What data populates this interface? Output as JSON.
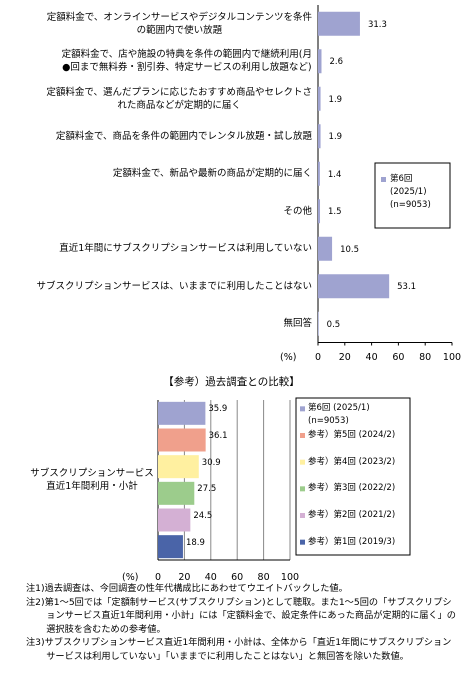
{
  "chart_data": [
    {
      "type": "bar",
      "orientation": "horizontal",
      "categories": [
        "定額料金で、オンラインサービスやデジタルコンテンツを条件\nの範囲内で使い放題",
        "定額料金で、店や施設の特典を条件の範囲内で継続利用(月\n●回まで無料券・割引券、特定サービスの利用し放題など)",
        "定額料金で、選んだプランに応じたおすすめ商品やセレクトさ\nれた商品などが定期的に届く",
        "定額料金で、商品を条件の範囲内でレンタル放題・試し放題",
        "定額料金で、新品や最新の商品が定期的に届く",
        "その他",
        "直近1年間にサブスクリプションサービスは利用していない",
        "サブスクリプションサービスは、いままでに利用したことはない",
        "無回答"
      ],
      "series": [
        {
          "name": "第6回\n(2025/1)\n(n=9053)",
          "color": "#9fa3d0",
          "values": [
            31.3,
            2.6,
            1.9,
            1.9,
            1.4,
            1.5,
            10.5,
            53.1,
            0.5
          ]
        }
      ],
      "x_label": "(%)",
      "xlim": [
        0,
        100
      ],
      "xticks": [
        0,
        20,
        40,
        60,
        80,
        100
      ],
      "grid": false
    },
    {
      "type": "bar",
      "orientation": "horizontal",
      "title": "【参考）過去調査との比較】",
      "categories": [
        "サブスクリプションサービス\n直近1年間利用・小計"
      ],
      "series": [
        {
          "name": "第6回 (2025/1)\n(n=9053)",
          "color": "#9fa3d0",
          "values": [
            35.9
          ]
        },
        {
          "name": "参考）第5回 (2024/2)",
          "color": "#f0a08c",
          "values": [
            36.1
          ]
        },
        {
          "name": "参考）第4回 (2023/2)",
          "color": "#fff0a0",
          "values": [
            30.9
          ]
        },
        {
          "name": "参考）第3回 (2022/2)",
          "color": "#9ccc8c",
          "values": [
            27.5
          ]
        },
        {
          "name": "参考）第2回 (2021/2)",
          "color": "#d4b0d4",
          "values": [
            24.5
          ]
        },
        {
          "name": "参考）第1回 (2019/3)",
          "color": "#4a64a8",
          "values": [
            18.9
          ]
        }
      ],
      "x_label": "(%)",
      "xlim": [
        0,
        100
      ],
      "xticks": [
        0,
        20,
        40,
        60,
        80,
        100
      ],
      "grid": true
    }
  ],
  "notes": [
    "注1)過去調査は、今回調査の性年代構成比にあわせてウエイトバックした値。",
    "注2)第1～5回では「定額制サービス(サブスクリプション)として聴取。また1～5回の「サブスクリプションサービス直近1年間利用・小計」には「定額料金で、設定条件にあった商品が定期的に届く」の選択肢を含むための参考値。",
    "注3)サブスクリプションサービス直近1年間利用・小計は、全体から「直近1年間にサブスクリプションサービスは利用していない」「いままでに利用したことはない」と無回答を除いた数値。"
  ]
}
